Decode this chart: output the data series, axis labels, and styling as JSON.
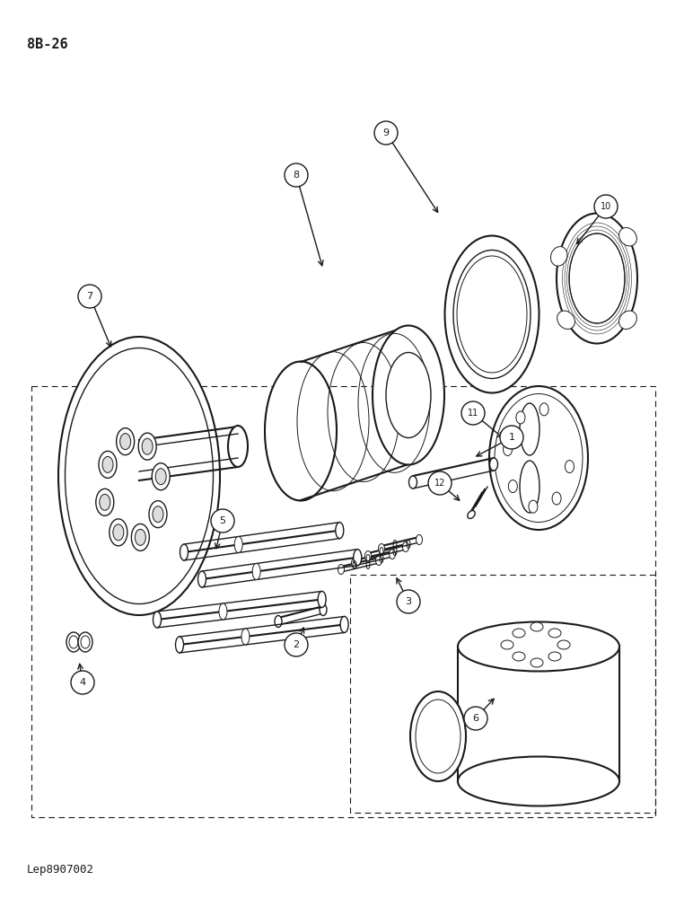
{
  "title_top_left": "8B-26",
  "title_bottom_left": "Lep8907002",
  "background_color": "#ffffff",
  "line_color": "#1a1a1a",
  "page_width": 7.72,
  "page_height": 10.0
}
